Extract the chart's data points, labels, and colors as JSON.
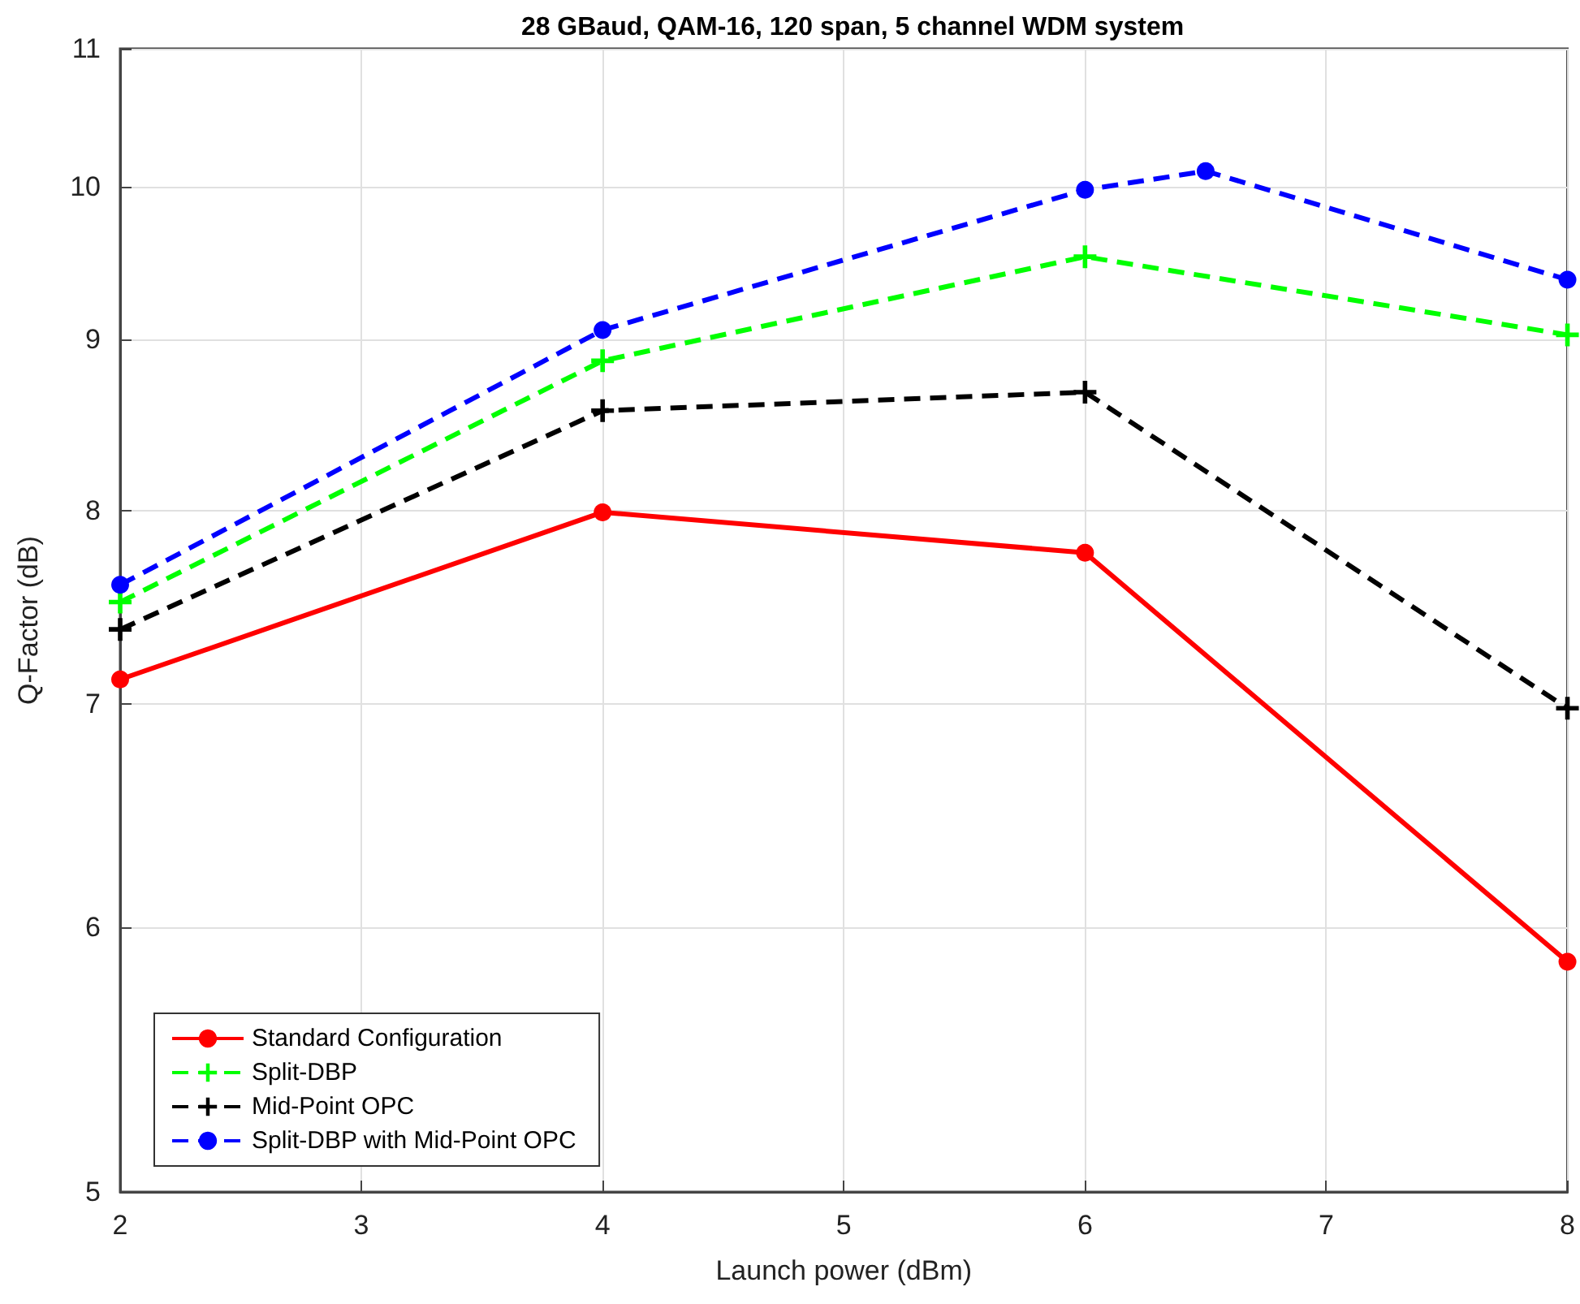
{
  "chart_data": {
    "type": "line",
    "title": "28 GBaud, QAM-16, 120 span, 5 channel WDM system",
    "xlabel": "Launch power (dBm)",
    "ylabel": "Q-Factor (dB)",
    "x": [
      2,
      4,
      6,
      8
    ],
    "series": [
      {
        "name": "Standard Configuration",
        "color": "#ff0000",
        "values": [
          7.12,
          7.99,
          7.77,
          5.86
        ],
        "marker": "circle",
        "line_style": "solid"
      },
      {
        "name": "Split-DBP",
        "color": "#00ff00",
        "values": [
          7.51,
          8.87,
          9.53,
          9.03
        ],
        "marker": "cross",
        "line_style": "dashed"
      },
      {
        "name": "Mid-Point OPC",
        "color": "#000000",
        "values": [
          7.37,
          8.57,
          8.68,
          6.98
        ],
        "marker": "cross",
        "line_style": "dashed"
      },
      {
        "name": "Split-DBP with Mid-Point OPC",
        "color": "#0000ff",
        "x": [
          2,
          4,
          6,
          6.5,
          8
        ],
        "values": [
          7.6,
          9.06,
          9.98,
          10.11,
          9.38
        ],
        "marker": "circle",
        "line_style": "dashed"
      }
    ],
    "xlim": [
      2,
      8
    ],
    "xticks": [
      2,
      3,
      4,
      5,
      6,
      7,
      8
    ],
    "ylim": [
      5,
      11
    ],
    "yticks": [
      5,
      6,
      7,
      8,
      9,
      10,
      11
    ],
    "log": "y",
    "grid": true,
    "legend": "bottom left"
  }
}
